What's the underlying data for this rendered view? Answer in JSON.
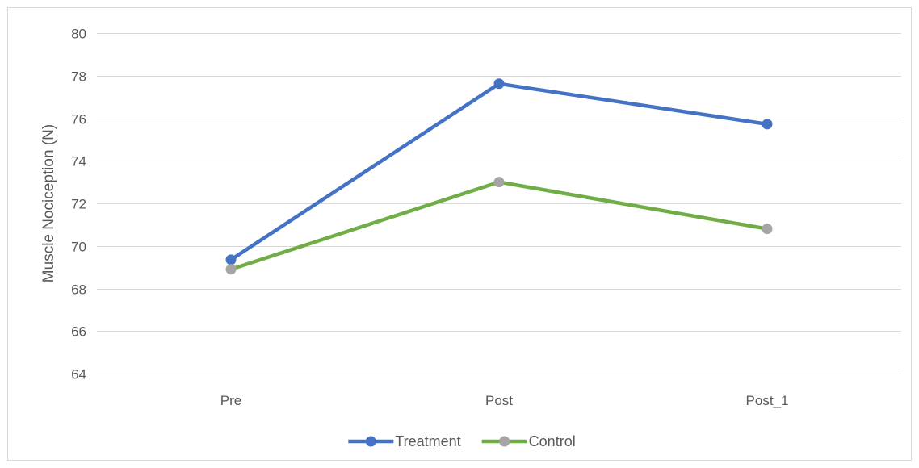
{
  "chart_data": {
    "type": "line",
    "title": "",
    "xlabel": "",
    "ylabel": "Muscle Nociception (N)",
    "categories": [
      "Pre",
      "Post",
      "Post_1"
    ],
    "ylim": [
      64,
      80
    ],
    "yticks": [
      64,
      66,
      68,
      70,
      72,
      74,
      76,
      78,
      80
    ],
    "grid": true,
    "legend_position": "bottom",
    "series": [
      {
        "name": "Treatment",
        "color": "#4472c4",
        "values": [
          69.35,
          77.62,
          75.72
        ]
      },
      {
        "name": "Control",
        "color": "#70ad47",
        "marker_color": "#a5a5a5",
        "values": [
          68.9,
          73.0,
          70.8
        ]
      }
    ]
  }
}
